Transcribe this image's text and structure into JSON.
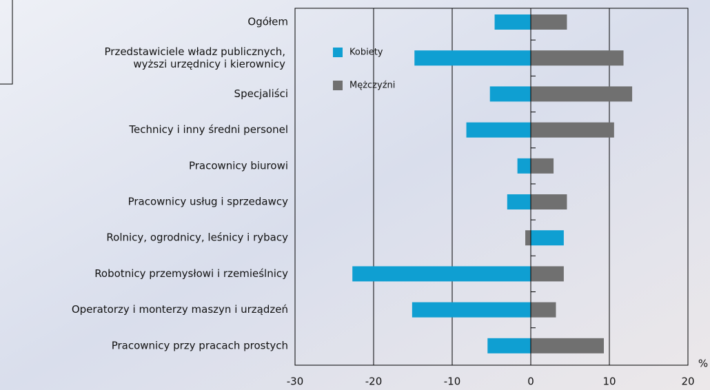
{
  "chart_data": {
    "type": "bar",
    "orientation": "horizontal",
    "categories": [
      "Ogółem",
      "Przedstawiciele władz publicznych,\nwyższi urzędnicy i kierownicy",
      "Specjaliści",
      "Technicy i inny średni personel",
      "Pracownicy biurowi",
      "Pracownicy usług i sprzedawcy",
      "Rolnicy, ogrodnicy, leśnicy i rybacy",
      "Robotnicy przemysłowi i rzemieślnicy",
      "Operatorzy i monterzy maszyn i urządzeń",
      "Pracownicy przy pracach prostych"
    ],
    "series": [
      {
        "name": "Kobiety",
        "color": "#0f9fd2",
        "values": [
          -4.6,
          -14.8,
          -5.2,
          -8.2,
          -1.7,
          -3.0,
          4.2,
          -22.7,
          -15.1,
          -5.5
        ]
      },
      {
        "name": "Mężczyźni",
        "color": "#707070",
        "values": [
          4.6,
          11.8,
          12.9,
          10.6,
          2.9,
          4.6,
          -0.7,
          4.2,
          3.2,
          9.3
        ]
      }
    ],
    "xlabel": "%",
    "xlim": [
      -30,
      20
    ],
    "xticks": [
      -30,
      -20,
      -10,
      0,
      10,
      20
    ],
    "grid": true,
    "legend": "upper left"
  }
}
